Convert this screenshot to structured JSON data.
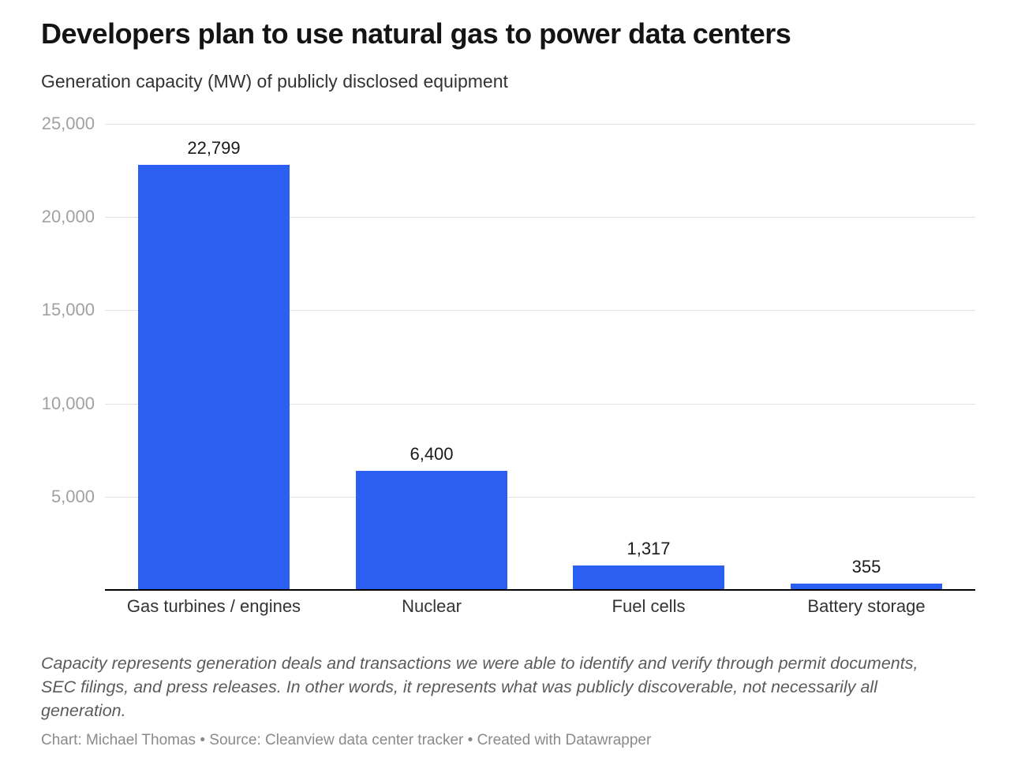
{
  "chart_data": {
    "type": "bar",
    "title": "Developers plan to use natural gas to power data centers",
    "subtitle": "Generation capacity (MW) of publicly disclosed equipment",
    "categories": [
      "Gas turbines / engines",
      "Nuclear",
      "Fuel cells",
      "Battery storage"
    ],
    "values": [
      22799,
      6400,
      1317,
      355
    ],
    "value_labels": [
      "22,799",
      "6,400",
      "1,317",
      "355"
    ],
    "xlabel": "",
    "ylabel": "",
    "ylim": [
      0,
      25000
    ],
    "yticks": [
      {
        "value": 5000,
        "label": "5,000"
      },
      {
        "value": 10000,
        "label": "10,000"
      },
      {
        "value": 15000,
        "label": "15,000"
      },
      {
        "value": 20000,
        "label": "20,000"
      },
      {
        "value": 25000,
        "label": "25,000"
      }
    ],
    "grid": true,
    "legend": "none"
  },
  "footer": {
    "note": "Capacity represents generation deals and transactions we were able to identify and verify through permit documents, SEC filings, and press releases. In other words, it represents what was publicly discoverable, not necessarily all generation.",
    "credit": "Chart: Michael Thomas • Source: Cleanview data center tracker • Created with Datawrapper"
  },
  "colors": {
    "bar": "#2b5ff2",
    "grid": "#e3e3e3",
    "axis": "#000000",
    "tick": "#a1a1a1",
    "title": "#141414",
    "subtitle": "#333333",
    "value": "#1a1a1a",
    "category": "#333333",
    "note": "#5b5b5b",
    "credit": "#8a8a8a"
  }
}
